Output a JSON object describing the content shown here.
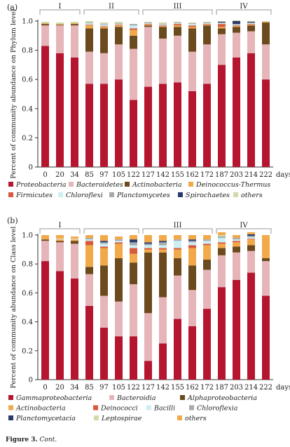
{
  "caption": {
    "label": "Figure 3.",
    "text": "Cont."
  },
  "chart_data": [
    {
      "type": "bar",
      "panel_label": "(a)",
      "ylabel": "Percent of community abundance on Phylum level",
      "xunit": "days",
      "yticks": [
        "0",
        "0.2",
        "0.4",
        "0.6",
        "0.8",
        "1.0"
      ],
      "ylim": [
        0,
        1.0
      ],
      "categories": [
        "0",
        "20",
        "34",
        "85",
        "97",
        "105",
        "122",
        "127",
        "142",
        "155",
        "162",
        "172",
        "187",
        "203",
        "214",
        "222"
      ],
      "groups": [
        {
          "label": "I",
          "from": 0,
          "to": 2
        },
        {
          "label": "II",
          "from": 3,
          "to": 6
        },
        {
          "label": "III",
          "from": 7,
          "to": 11
        },
        {
          "label": "IV",
          "from": 12,
          "to": 15
        }
      ],
      "series": [
        {
          "name": "Proteobacteria",
          "color": "#b5152e",
          "values": [
            0.83,
            0.78,
            0.75,
            0.57,
            0.57,
            0.6,
            0.46,
            0.55,
            0.57,
            0.58,
            0.52,
            0.57,
            0.7,
            0.75,
            0.78,
            0.6
          ]
        },
        {
          "name": "Bacteroidetes",
          "color": "#e5b5b9",
          "values": [
            0.14,
            0.19,
            0.22,
            0.22,
            0.21,
            0.24,
            0.35,
            0.41,
            0.31,
            0.32,
            0.27,
            0.27,
            0.21,
            0.17,
            0.15,
            0.24
          ]
        },
        {
          "name": "Actinobacteria",
          "color": "#6b4a1d",
          "values": [
            0.01,
            0.005,
            0.01,
            0.16,
            0.17,
            0.12,
            0.09,
            0.01,
            0.08,
            0.06,
            0.16,
            0.13,
            0.04,
            0.04,
            0.04,
            0.15
          ]
        },
        {
          "name": "Deinococcus-Thermus",
          "color": "#f2a94a",
          "values": [
            0.005,
            0.005,
            0.005,
            0.02,
            0.01,
            0.01,
            0.04,
            0.005,
            0.005,
            0.01,
            0.01,
            0.005,
            0.01,
            0.005,
            0.005,
            0.005
          ]
        },
        {
          "name": "Firmicutes",
          "color": "#d85a3c",
          "values": [
            0.0,
            0.0,
            0.0,
            0.005,
            0.005,
            0.005,
            0.01,
            0.005,
            0.005,
            0.01,
            0.01,
            0.005,
            0.02,
            0.005,
            0.005,
            0.0
          ]
        },
        {
          "name": "Chloroflexi",
          "color": "#cdeef2",
          "values": [
            0.0,
            0.0,
            0.0,
            0.01,
            0.01,
            0.005,
            0.02,
            0.005,
            0.005,
            0.005,
            0.01,
            0.005,
            0.005,
            0.005,
            0.005,
            0.0
          ]
        },
        {
          "name": "Planctomycetes",
          "color": "#a4aaae",
          "values": [
            0.0,
            0.0,
            0.0,
            0.005,
            0.005,
            0.005,
            0.01,
            0.005,
            0.005,
            0.005,
            0.005,
            0.005,
            0.005,
            0.005,
            0.005,
            0.0
          ]
        },
        {
          "name": "Spirochaetes",
          "color": "#2b3a6b",
          "values": [
            0.0,
            0.0,
            0.0,
            0.0,
            0.0,
            0.0,
            0.0,
            0.0,
            0.0,
            0.0,
            0.0,
            0.0,
            0.005,
            0.02,
            0.005,
            0.0
          ]
        },
        {
          "name": "others",
          "color": "#cfdca9",
          "values": [
            0.01,
            0.01,
            0.01,
            0.01,
            0.01,
            0.01,
            0.0,
            0.005,
            0.01,
            0.005,
            0.005,
            0.005,
            0.005,
            0.005,
            0.005,
            0.005
          ]
        }
      ]
    },
    {
      "type": "bar",
      "panel_label": "(b)",
      "ylabel": "Percent of community abundance on Class level",
      "xunit": "days",
      "yticks": [
        "0",
        "0.2",
        "0.4",
        "0.6",
        "0.8",
        "1.0"
      ],
      "ylim": [
        0,
        1.0
      ],
      "categories": [
        "0",
        "20",
        "34",
        "85",
        "97",
        "105",
        "122",
        "127",
        "142",
        "155",
        "162",
        "172",
        "187",
        "203",
        "214",
        "222"
      ],
      "groups": [
        {
          "label": "I",
          "from": 0,
          "to": 2
        },
        {
          "label": "",
          "from": 3,
          "to": 6
        },
        {
          "label": "III",
          "from": 7,
          "to": 11
        },
        {
          "label": "IV",
          "from": 12,
          "to": 15
        }
      ],
      "series": [
        {
          "name": "Gammaproteobacteria",
          "color": "#b5152e",
          "values": [
            0.82,
            0.75,
            0.7,
            0.51,
            0.36,
            0.3,
            0.3,
            0.13,
            0.25,
            0.42,
            0.37,
            0.49,
            0.64,
            0.69,
            0.74,
            0.58
          ]
        },
        {
          "name": "Bacteroidia",
          "color": "#e5b5b9",
          "values": [
            0.14,
            0.2,
            0.24,
            0.22,
            0.22,
            0.24,
            0.36,
            0.33,
            0.32,
            0.3,
            0.25,
            0.27,
            0.22,
            0.19,
            0.15,
            0.24
          ]
        },
        {
          "name": "Alphaproteobacteria",
          "color": "#6b4a1d",
          "values": [
            0.01,
            0.01,
            0.02,
            0.05,
            0.21,
            0.3,
            0.15,
            0.42,
            0.31,
            0.12,
            0.17,
            0.07,
            0.05,
            0.04,
            0.04,
            0.02
          ]
        },
        {
          "name": "Actinobacteria",
          "color": "#f2a94a",
          "values": [
            0.005,
            0.01,
            0.01,
            0.15,
            0.12,
            0.1,
            0.06,
            0.02,
            0.02,
            0.06,
            0.12,
            0.1,
            0.03,
            0.03,
            0.04,
            0.15
          ]
        },
        {
          "name": "Deinococci",
          "color": "#d85a3c",
          "values": [
            0.0,
            0.0,
            0.0,
            0.03,
            0.01,
            0.01,
            0.04,
            0.01,
            0.01,
            0.01,
            0.02,
            0.01,
            0.01,
            0.01,
            0.005,
            0.0
          ]
        },
        {
          "name": "Bacilli",
          "color": "#cdeef2",
          "values": [
            0.0,
            0.005,
            0.005,
            0.01,
            0.02,
            0.01,
            0.02,
            0.02,
            0.02,
            0.05,
            0.02,
            0.02,
            0.03,
            0.01,
            0.01,
            0.0
          ]
        },
        {
          "name": "Chloroflexia",
          "color": "#a4aaae",
          "values": [
            0.0,
            0.0,
            0.0,
            0.01,
            0.01,
            0.01,
            0.02,
            0.01,
            0.02,
            0.01,
            0.01,
            0.01,
            0.01,
            0.01,
            0.01,
            0.0
          ]
        },
        {
          "name": "Planctomycetacia",
          "color": "#2b3a6b",
          "values": [
            0.0,
            0.0,
            0.0,
            0.0,
            0.01,
            0.0,
            0.02,
            0.01,
            0.01,
            0.0,
            0.01,
            0.0,
            0.0,
            0.0,
            0.01,
            0.0
          ]
        },
        {
          "name": "Leptospirae",
          "color": "#cfdca9",
          "values": [
            0.0,
            0.0,
            0.0,
            0.0,
            0.0,
            0.0,
            0.0,
            0.0,
            0.0,
            0.0,
            0.0,
            0.0,
            0.01,
            0.0,
            0.0,
            0.0
          ]
        },
        {
          "name": "others",
          "color": "#f2a94a",
          "values": [
            0.025,
            0.025,
            0.015,
            0.02,
            0.04,
            0.02,
            0.03,
            0.05,
            0.04,
            0.03,
            0.03,
            0.03,
            0.02,
            0.02,
            0.015,
            0.01
          ]
        }
      ]
    }
  ]
}
